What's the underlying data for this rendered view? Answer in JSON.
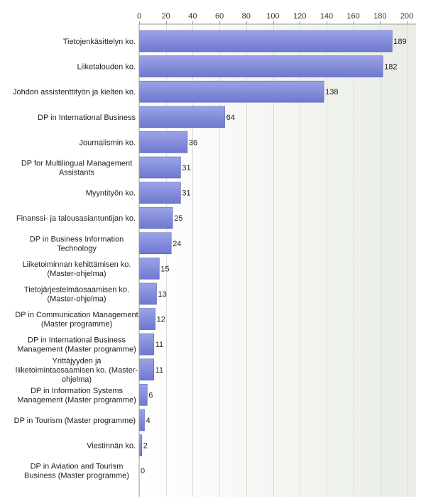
{
  "chart_data": {
    "type": "bar",
    "orientation": "horizontal",
    "title": "",
    "xlabel": "",
    "ylabel": "",
    "xlim": [
      0,
      200
    ],
    "ticks": [
      0,
      20,
      40,
      60,
      80,
      100,
      120,
      140,
      160,
      180,
      200
    ],
    "tick_position": "top",
    "grid": true,
    "legend": "none",
    "categories": [
      [
        "Tietojenkäsittelyn ko."
      ],
      [
        "Liiketalouden ko."
      ],
      [
        "Johdon assistenttityön ja kielten ko."
      ],
      [
        "DP in International Business"
      ],
      [
        "Journalismin ko."
      ],
      [
        "DP for Multilingual Management",
        "Assistants"
      ],
      [
        "Myyntityön ko."
      ],
      [
        "Finanssi- ja talousasiantuntijan ko."
      ],
      [
        "DP in Business Information",
        "Technology"
      ],
      [
        "Liiketoiminnan kehittämisen ko.",
        "(Master-ohjelma)"
      ],
      [
        "Tietojärjestelmäosaamisen ko.",
        "(Master-ohjelma)"
      ],
      [
        "DP in Communication Management",
        "(Master programme)"
      ],
      [
        "DP in International Business",
        "Management (Master programme)"
      ],
      [
        "Yrittäjyyden ja",
        "liiketoimintaosaamisen ko. (Master-",
        "ohjelma)"
      ],
      [
        "DP in Information Systems",
        "Management (Master programme)"
      ],
      [
        "DP in Tourism (Master programme)"
      ],
      [
        "Viestinnän ko."
      ],
      [
        "DP in Aviation and Tourism",
        "Business (Master programme)"
      ]
    ],
    "values": [
      189,
      182,
      138,
      64,
      36,
      31,
      31,
      25,
      24,
      15,
      13,
      12,
      11,
      11,
      6,
      4,
      2,
      0
    ],
    "colors": {
      "bar_top": "#9ba3e6",
      "bar_bottom": "#6e78cf",
      "bar_edge": "#5a63b8",
      "plot_bg_left": "#ffffff",
      "plot_bg_right": "#e9ede6"
    }
  }
}
